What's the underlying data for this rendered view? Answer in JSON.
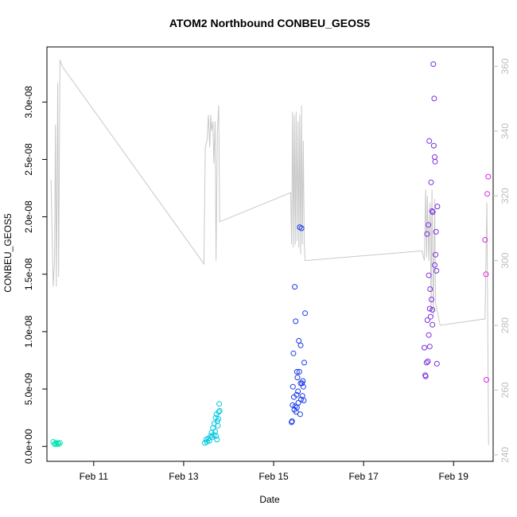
{
  "chart_data": {
    "type": "scatter",
    "title": "ATOM2 Northbound CONBEU_GEOS5",
    "xlabel": "Date",
    "ylabel": "CONBEU_GEOS5",
    "x_ticks": [
      "Feb 11",
      "Feb 13",
      "Feb 15",
      "Feb 17",
      "Feb 19"
    ],
    "x_tick_days": [
      11,
      13,
      15,
      17,
      19
    ],
    "xlim_days": [
      9.96,
      19.88
    ],
    "ylim": [
      -1.3e-09,
      3.48e-08
    ],
    "y_ticks": [
      0,
      5e-09,
      1e-08,
      1.5e-08,
      2e-08,
      2.5e-08,
      3e-08
    ],
    "y_tick_labels": [
      "0.0e+00",
      "5.0e-09",
      "1.0e-08",
      "1.5e-08",
      "2.0e-08",
      "2.5e-08",
      "3.0e-08"
    ],
    "y2_ticks": [
      240,
      260,
      280,
      300,
      320,
      340,
      360
    ],
    "y2lim": [
      238,
      366
    ],
    "grid": false,
    "legend": "none",
    "line_color": "#c8c8c8",
    "right_axis_color": "#bdbdbd",
    "series": [
      {
        "color": "#00e5b0",
        "points": [
          [
            10.1,
            4e-10
          ],
          [
            10.13,
            2e-10
          ],
          [
            10.15,
            3e-10
          ],
          [
            10.17,
            2e-10
          ],
          [
            10.2,
            3e-10
          ],
          [
            10.22,
            2e-10
          ],
          [
            10.25,
            3e-10
          ]
        ]
      },
      {
        "color": "#00c8e0",
        "points": [
          [
            13.47,
            3e-10
          ],
          [
            13.5,
            6e-10
          ],
          [
            13.52,
            4e-10
          ],
          [
            13.55,
            7e-10
          ],
          [
            13.57,
            5e-10
          ],
          [
            13.6,
            9e-10
          ],
          [
            13.62,
            1.2e-09
          ],
          [
            13.63,
            8e-10
          ],
          [
            13.65,
            1.6e-09
          ],
          [
            13.67,
            1e-09
          ],
          [
            13.68,
            2e-09
          ],
          [
            13.7,
            1.3e-09
          ],
          [
            13.71,
            2.5e-09
          ],
          [
            13.72,
            9e-10
          ],
          [
            13.73,
            2.8e-09
          ],
          [
            13.74,
            6e-10
          ],
          [
            13.75,
            2.2e-09
          ],
          [
            13.76,
            1.8e-09
          ],
          [
            13.77,
            2.4e-09
          ],
          [
            13.78,
            3e-09
          ],
          [
            13.79,
            3.7e-09
          ],
          [
            13.8,
            3.1e-09
          ]
        ]
      },
      {
        "color": "#1a3be8",
        "points": [
          [
            15.4,
            2.1e-09
          ],
          [
            15.42,
            3.6e-09
          ],
          [
            15.43,
            5.2e-09
          ],
          [
            15.44,
            8.1e-09
          ],
          [
            15.45,
            4.3e-09
          ],
          [
            15.46,
            3.2e-09
          ],
          [
            15.47,
            1.39e-08
          ],
          [
            15.48,
            3.5e-09
          ],
          [
            15.49,
            1.09e-08
          ],
          [
            15.5,
            3e-09
          ],
          [
            15.51,
            4.5e-09
          ],
          [
            15.52,
            3.4e-09
          ],
          [
            15.53,
            6e-09
          ],
          [
            15.54,
            4.8e-09
          ],
          [
            15.55,
            3.8e-09
          ],
          [
            15.56,
            9.2e-09
          ],
          [
            15.57,
            6.5e-09
          ],
          [
            15.58,
            1.91e-08
          ],
          [
            15.59,
            2.8e-09
          ],
          [
            15.6,
            8.8e-09
          ],
          [
            15.61,
            4.1e-09
          ],
          [
            15.62,
            1.9e-08
          ],
          [
            15.63,
            5.5e-09
          ],
          [
            15.64,
            4.4e-09
          ],
          [
            15.65,
            5.7e-09
          ],
          [
            15.66,
            5.2e-09
          ],
          [
            15.67,
            4e-09
          ],
          [
            15.68,
            7.3e-09
          ],
          [
            15.7,
            1.16e-08
          ],
          [
            15.41,
            2.2e-09
          ],
          [
            15.52,
            6.5e-09
          ],
          [
            15.6,
            5.5e-09
          ]
        ]
      },
      {
        "color": "#7a2be0",
        "points": [
          [
            18.35,
            8.6e-09
          ],
          [
            18.37,
            6.2e-09
          ],
          [
            18.38,
            6.1e-09
          ],
          [
            18.4,
            7.3e-09
          ],
          [
            18.41,
            1.85e-08
          ],
          [
            18.42,
            1.1e-08
          ],
          [
            18.43,
            7.4e-09
          ],
          [
            18.44,
            1.93e-08
          ],
          [
            18.45,
            1.49e-08
          ],
          [
            18.46,
            2.66e-08
          ],
          [
            18.47,
            1.2e-08
          ],
          [
            18.48,
            1.37e-08
          ],
          [
            18.49,
            1.13e-08
          ],
          [
            18.5,
            2.3e-08
          ],
          [
            18.51,
            1.28e-08
          ],
          [
            18.52,
            2.05e-08
          ],
          [
            18.53,
            1.19e-08
          ],
          [
            18.54,
            2.04e-08
          ],
          [
            18.55,
            3.33e-08
          ],
          [
            18.56,
            2.62e-08
          ],
          [
            18.57,
            3.03e-08
          ],
          [
            18.58,
            2.52e-08
          ],
          [
            18.59,
            2.48e-08
          ],
          [
            18.6,
            1.67e-08
          ],
          [
            18.61,
            1.87e-08
          ],
          [
            18.62,
            1.53e-08
          ],
          [
            18.63,
            7.2e-09
          ],
          [
            18.64,
            2.09e-08
          ],
          [
            18.45,
            9.7e-09
          ],
          [
            18.47,
            8.7e-09
          ],
          [
            18.53,
            1.06e-08
          ],
          [
            18.58,
            1.58e-08
          ]
        ]
      },
      {
        "color": "#e020e8",
        "points": [
          [
            19.7,
            1.8e-08
          ],
          [
            19.72,
            1.5e-08
          ],
          [
            19.73,
            5.8e-09
          ],
          [
            19.75,
            2.2e-08
          ],
          [
            19.77,
            2.35e-08
          ]
        ]
      }
    ],
    "line": [
      [
        10.05,
        325
      ],
      [
        10.1,
        292
      ],
      [
        10.13,
        300
      ],
      [
        10.15,
        342
      ],
      [
        10.17,
        292
      ],
      [
        10.2,
        355
      ],
      [
        10.22,
        295
      ],
      [
        10.25,
        362
      ],
      [
        10.3,
        360
      ],
      [
        13.45,
        299
      ],
      [
        13.48,
        335
      ],
      [
        13.52,
        337
      ],
      [
        13.55,
        345
      ],
      [
        13.58,
        335
      ],
      [
        13.6,
        345
      ],
      [
        13.62,
        340
      ],
      [
        13.65,
        343
      ],
      [
        13.67,
        330
      ],
      [
        13.7,
        343
      ],
      [
        13.72,
        300
      ],
      [
        13.75,
        340
      ],
      [
        13.78,
        348
      ],
      [
        13.8,
        312
      ],
      [
        15.38,
        321
      ],
      [
        15.4,
        305
      ],
      [
        15.42,
        346
      ],
      [
        15.44,
        304
      ],
      [
        15.46,
        345
      ],
      [
        15.48,
        305
      ],
      [
        15.5,
        346
      ],
      [
        15.52,
        306
      ],
      [
        15.54,
        343
      ],
      [
        15.56,
        304
      ],
      [
        15.58,
        345
      ],
      [
        15.6,
        302
      ],
      [
        15.62,
        348
      ],
      [
        15.64,
        305
      ],
      [
        15.66,
        337
      ],
      [
        15.68,
        306
      ],
      [
        15.7,
        300
      ],
      [
        18.3,
        303
      ],
      [
        18.35,
        300
      ],
      [
        18.38,
        322
      ],
      [
        18.4,
        301
      ],
      [
        18.42,
        320
      ],
      [
        18.45,
        300
      ],
      [
        18.48,
        318
      ],
      [
        18.5,
        284
      ],
      [
        18.52,
        322
      ],
      [
        18.55,
        283
      ],
      [
        18.58,
        319
      ],
      [
        18.6,
        287
      ],
      [
        18.63,
        285
      ],
      [
        18.7,
        280
      ],
      [
        19.7,
        282
      ],
      [
        19.74,
        318
      ],
      [
        19.78,
        243
      ]
    ]
  }
}
